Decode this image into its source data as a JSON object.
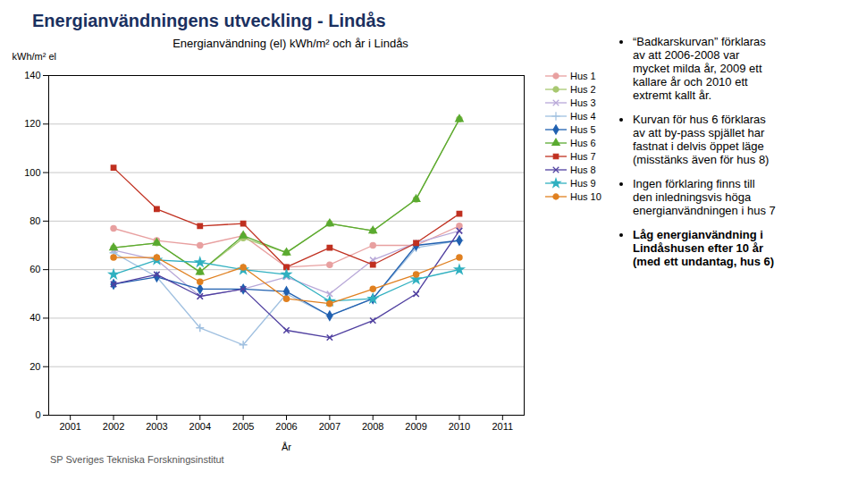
{
  "chart_data": {
    "type": "line",
    "title": "Energianvändningens utveckling - Lindås",
    "subtitle": "Energianvändning (el) kWh/m² och år i Lindås",
    "ylabel": "kWh/m² el",
    "xlabel": "År",
    "x": [
      2001,
      2002,
      2003,
      2004,
      2005,
      2006,
      2007,
      2008,
      2009,
      2010,
      2011
    ],
    "series": [
      {
        "name": "Hus 1",
        "color": "#e8a0a0",
        "marker": "circle",
        "values": [
          null,
          77,
          72,
          70,
          74,
          61,
          62,
          70,
          70,
          78,
          null
        ]
      },
      {
        "name": "Hus 2",
        "color": "#a8c870",
        "marker": "circle",
        "values": [
          null,
          69,
          71,
          59,
          73,
          67,
          79,
          76,
          89,
          122,
          null
        ]
      },
      {
        "name": "Hus 3",
        "color": "#b8a8d8",
        "marker": "x",
        "values": [
          null,
          68,
          64,
          49,
          52,
          57,
          50,
          64,
          71,
          76,
          null
        ]
      },
      {
        "name": "Hus 4",
        "color": "#a0c0e0",
        "marker": "plus",
        "values": [
          null,
          67,
          57,
          36,
          29,
          50,
          41,
          48,
          69,
          72,
          null
        ]
      },
      {
        "name": "Hus 5",
        "color": "#2060b0",
        "marker": "diamond",
        "values": [
          null,
          54,
          57,
          52,
          52,
          51,
          41,
          48,
          70,
          72,
          null
        ]
      },
      {
        "name": "Hus 6",
        "color": "#5aaa30",
        "marker": "triangle",
        "values": [
          null,
          69,
          71,
          59,
          74,
          67,
          79,
          76,
          89,
          122,
          null
        ]
      },
      {
        "name": "Hus 7",
        "color": "#c03020",
        "marker": "square",
        "values": [
          null,
          102,
          85,
          78,
          79,
          61,
          69,
          62,
          71,
          83,
          null
        ]
      },
      {
        "name": "Hus 8",
        "color": "#5040a0",
        "marker": "x",
        "values": [
          null,
          54,
          58,
          49,
          52,
          35,
          32,
          39,
          50,
          76,
          null
        ]
      },
      {
        "name": "Hus 9",
        "color": "#30b0c0",
        "marker": "star",
        "values": [
          null,
          58,
          64,
          63,
          60,
          58,
          47,
          48,
          56,
          60,
          null
        ]
      },
      {
        "name": "Hus 10",
        "color": "#e08020",
        "marker": "circle",
        "values": [
          null,
          65,
          65,
          55,
          61,
          48,
          46,
          52,
          58,
          65,
          null
        ]
      }
    ],
    "xlim": [
      2000.5,
      2011.5
    ],
    "xticks": [
      2001,
      2002,
      2003,
      2004,
      2005,
      2006,
      2007,
      2008,
      2009,
      2010,
      2011
    ],
    "ylim": [
      0,
      140
    ],
    "yticks": [
      0,
      20,
      40,
      60,
      80,
      100,
      120,
      140
    ],
    "grid": true,
    "legend": "upper right",
    "annotations": [
      [
        "“Badkarskurvan” förklaras",
        "av att 2006-2008 var",
        "mycket milda år,  2009 ett",
        "kallare år och 2010 ett",
        "extremt kallt år."
      ],
      [
        " Kurvan för hus 6 förklaras",
        "av att by-pass spjället har",
        "fastnat i delvis öppet läge",
        "(misstänks även för hus 8)"
      ],
      [
        "Ingen förklaring finns till",
        "den inledningsvis höga",
        "energianvändningen i hus 7"
      ],
      [
        "Låg energianvändning i",
        "Lindåshusen efter 10 år",
        "(med ett undantag, hus 6)"
      ]
    ],
    "caption": "SP Sveriges Tekniska Forskningsinstitut"
  }
}
